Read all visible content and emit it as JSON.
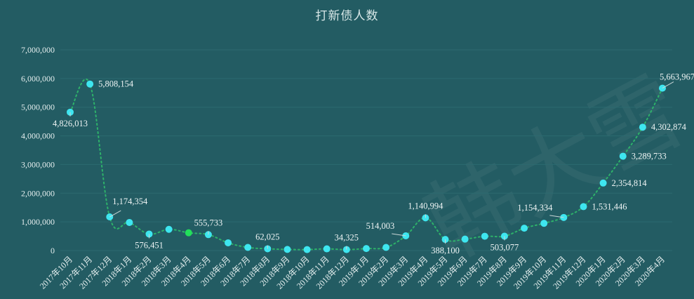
{
  "title": "打新债人数",
  "watermark": "韩大雪",
  "colors": {
    "background": "#235c63",
    "point": "#3ee6f0",
    "highlight_point": "#22e05a",
    "line": "#2eb26a",
    "grid": "#2c6a70",
    "text": "#e4eeee"
  },
  "chart_data": {
    "type": "line",
    "title": "打新债人数",
    "xlabel": "",
    "ylabel": "",
    "ylim": [
      0,
      7000000
    ],
    "yticks": [
      0,
      1000000,
      2000000,
      3000000,
      4000000,
      5000000,
      6000000,
      7000000
    ],
    "ytick_labels": [
      "0",
      "1,000,000",
      "2,000,000",
      "3,000,000",
      "4,000,000",
      "5,000,000",
      "6,000,000",
      "7,000,000"
    ],
    "grid": true,
    "line_style": "dotted",
    "categories": [
      "2017年10月",
      "2017年11月",
      "2017年12月",
      "2018年1月",
      "2018年2月",
      "2018年3月",
      "2018年4月",
      "2018年5月",
      "2018年6月",
      "2018年7月",
      "2018年8月",
      "2018年9月",
      "2018年10月",
      "2018年11月",
      "2018年12月",
      "2019年1月",
      "2019年2月",
      "2019年3月",
      "2019年4月",
      "2019年5月",
      "2019年6月",
      "2019年7月",
      "2019年8月",
      "2019年9月",
      "2019年10月",
      "2019年11月",
      "2019年12月",
      "2020年1月",
      "2020年2月",
      "2020年3月",
      "2020年4月"
    ],
    "series": [
      {
        "name": "打新债人数",
        "values": [
          4826013,
          5808154,
          1174354,
          980000,
          576451,
          740000,
          620000,
          555733,
          270000,
          110000,
          62025,
          40000,
          35000,
          60000,
          34325,
          70000,
          110000,
          514003,
          1140994,
          388100,
          400000,
          500000,
          503077,
          780000,
          950000,
          1154334,
          1531446,
          2354814,
          3289733,
          4302874,
          5663967
        ]
      }
    ],
    "data_labels": [
      {
        "index": 0,
        "text": "4,826,013",
        "pos": "below"
      },
      {
        "index": 1,
        "text": "5,808,154",
        "pos": "right"
      },
      {
        "index": 2,
        "text": "1,174,354",
        "pos": "above-right"
      },
      {
        "index": 4,
        "text": "576,451",
        "pos": "below"
      },
      {
        "index": 7,
        "text": "555,733",
        "pos": "above"
      },
      {
        "index": 10,
        "text": "62,025",
        "pos": "above"
      },
      {
        "index": 14,
        "text": "34,325",
        "pos": "above"
      },
      {
        "index": 17,
        "text": "514,003",
        "pos": "above-left"
      },
      {
        "index": 18,
        "text": "1,140,994",
        "pos": "above"
      },
      {
        "index": 19,
        "text": "388,100",
        "pos": "below"
      },
      {
        "index": 22,
        "text": "503,077",
        "pos": "below"
      },
      {
        "index": 25,
        "text": "1,154,334",
        "pos": "above-left"
      },
      {
        "index": 26,
        "text": "1,531,446",
        "pos": "right"
      },
      {
        "index": 27,
        "text": "2,354,814",
        "pos": "right"
      },
      {
        "index": 28,
        "text": "3,289,733",
        "pos": "right"
      },
      {
        "index": 29,
        "text": "4,302,874",
        "pos": "right"
      },
      {
        "index": 30,
        "text": "5,663,967",
        "pos": "above-right"
      }
    ],
    "highlight_index": 6
  }
}
